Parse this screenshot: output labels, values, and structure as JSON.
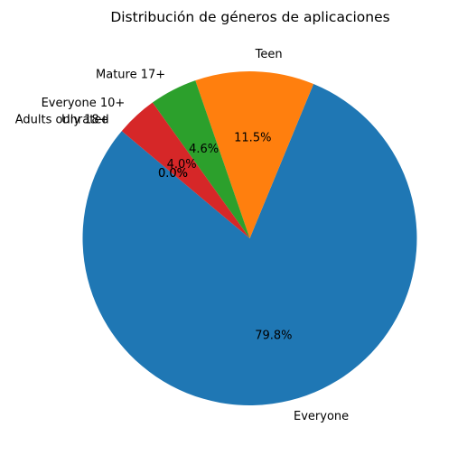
{
  "chart_data": {
    "type": "pie",
    "title": "Distribución de géneros de aplicaciones",
    "start_angle_deg": 140,
    "direction": "counterclockwise",
    "slices": [
      {
        "label": "Everyone",
        "value": 79.8,
        "pct_label": "79.8%",
        "color": "#1f77b4"
      },
      {
        "label": "Teen",
        "value": 11.5,
        "pct_label": "11.5%",
        "color": "#ff7f0e"
      },
      {
        "label": "Mature 17+",
        "value": 4.6,
        "pct_label": "4.6%",
        "color": "#2ca02c"
      },
      {
        "label": "Everyone 10+",
        "value": 4.0,
        "pct_label": "4.0%",
        "color": "#d62728"
      },
      {
        "label": "Adults only 18+",
        "value": 0.0,
        "pct_label": "0.0%",
        "color": "#9467bd"
      },
      {
        "label": "Unrated",
        "value": 0.0,
        "pct_label": "0.0%",
        "color": "#8c564b"
      }
    ]
  }
}
